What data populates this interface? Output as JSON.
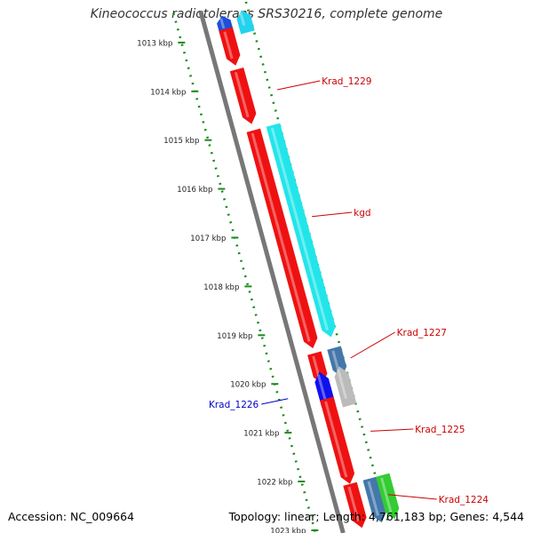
{
  "title": "Kineococcus radiotolerans SRS30216, complete genome",
  "accession": "Accession: NC_009664",
  "summary": "Topology: linear; Length: 4,761,183 bp; Genes: 4,544",
  "ruler": {
    "unit": "kbp",
    "ticks": [
      1013,
      1014,
      1015,
      1016,
      1017,
      1018,
      1019,
      1020,
      1021,
      1022,
      1023
    ]
  },
  "genes": [
    {
      "name": "",
      "strand": "-",
      "color": "#22d3ee",
      "start": 1012.7,
      "end": 1013.15,
      "track": 2
    },
    {
      "name": "",
      "strand": "-",
      "color": "#1d4ed8",
      "start": 1012.7,
      "end": 1013.1,
      "track": 1
    },
    {
      "name": "",
      "strand": "+",
      "color": "#ef1111",
      "start": 1012.97,
      "end": 1013.72,
      "track": 1
    },
    {
      "name": "Krad_1229",
      "strand": "+",
      "color": "#ef1111",
      "start": 1013.8,
      "end": 1014.92,
      "track": 1,
      "label_side": "right",
      "label_color": "#cc0000"
    },
    {
      "name": "kgd",
      "strand": "+",
      "color": "#ef1111",
      "start": 1015.05,
      "end": 1019.52,
      "track": 1
    },
    {
      "name": "",
      "strand": "+",
      "color": "#22e5ea",
      "start": 1015.05,
      "end": 1019.4,
      "track": 2,
      "label_side": "right",
      "label_color": "#cc0000",
      "label_text_key": "kgd"
    },
    {
      "name": "Krad_1227",
      "strand": "+",
      "color": "#4477aa",
      "start": 1019.62,
      "end": 1020.22,
      "track": 2,
      "label_side": "right",
      "label_color": "#cc0000"
    },
    {
      "name": "",
      "strand": "+",
      "color": "#ef1111",
      "start": 1019.62,
      "end": 1020.25,
      "track": 1
    },
    {
      "name": "",
      "strand": "-",
      "color": "#bbbbbb",
      "start": 1020.0,
      "end": 1020.8,
      "track": 2
    },
    {
      "name": "Krad_1226",
      "strand": "-",
      "color": "#1010ee",
      "start": 1020.0,
      "end": 1020.7,
      "track": 1,
      "label_side": "left",
      "label_color": "#0000cc"
    },
    {
      "name": "Krad_1225",
      "strand": "+",
      "color": "#ef1111",
      "start": 1020.55,
      "end": 1022.3,
      "track": 1,
      "label_side": "right",
      "label_color": "#cc0000"
    },
    {
      "name": "Krad_1224",
      "strand": "+",
      "color": "#ef1111",
      "start": 1022.3,
      "end": 1023.2,
      "track": 1,
      "label_side": "right",
      "label_color": "#cc0000"
    },
    {
      "name": "",
      "strand": "+",
      "color": "#4477aa",
      "start": 1022.3,
      "end": 1023.2,
      "track": 2
    },
    {
      "name": "",
      "strand": "+",
      "color": "#33cc33",
      "start": 1022.3,
      "end": 1023.2,
      "track": 3
    }
  ]
}
